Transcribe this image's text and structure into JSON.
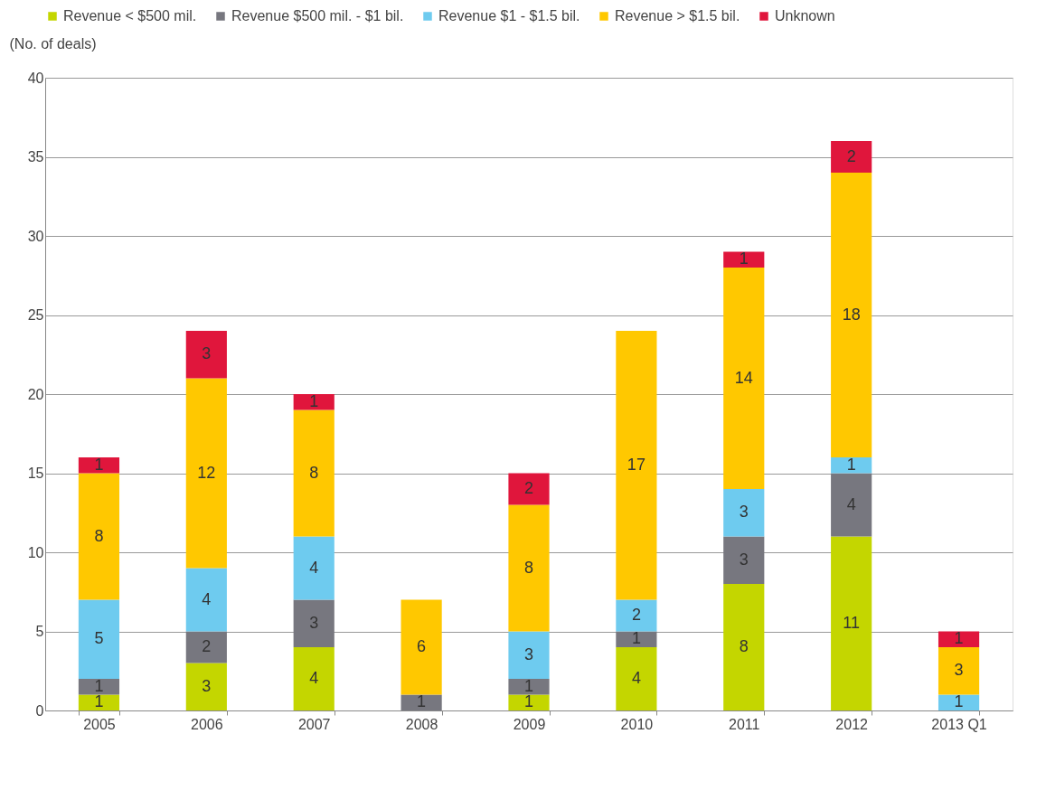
{
  "chart_data": {
    "type": "bar",
    "stacked": true,
    "ylabel": "(No. of deals)",
    "categories": [
      "2005",
      "2006",
      "2007",
      "2008",
      "2009",
      "2010",
      "2011",
      "2012",
      "2013 Q1"
    ],
    "series": [
      {
        "name": "Revenue < $500 mil.",
        "color": "#c4d600",
        "values": [
          1,
          3,
          4,
          null,
          1,
          4,
          8,
          11,
          null
        ]
      },
      {
        "name": "Revenue $500 mil. - $1 bil.",
        "color": "#77777f",
        "values": [
          1,
          2,
          3,
          1,
          1,
          1,
          3,
          4,
          null
        ]
      },
      {
        "name": "Revenue $1 - $1.5 bil.",
        "color": "#6ecbef",
        "values": [
          5,
          4,
          4,
          null,
          3,
          2,
          3,
          1,
          1
        ]
      },
      {
        "name": "Revenue > $1.5 bil.",
        "color": "#ffc800",
        "values": [
          8,
          12,
          8,
          6,
          8,
          17,
          14,
          18,
          3
        ]
      },
      {
        "name": "Unknown",
        "color": "#e0163c",
        "values": [
          1,
          3,
          1,
          null,
          2,
          null,
          1,
          2,
          1
        ]
      }
    ],
    "ylim": [
      0,
      40
    ],
    "yticks": [
      0,
      5,
      10,
      15,
      20,
      25,
      30,
      35,
      40
    ],
    "grid": "y",
    "legend": "top",
    "data_labels": true
  }
}
